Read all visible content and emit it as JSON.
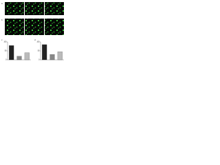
{
  "panels": [
    "a",
    "b",
    "c",
    "d"
  ],
  "chart_data": [
    {
      "type": "bar",
      "categories": [
        null,
        null,
        null
      ],
      "values": [
        80,
        20,
        40
      ],
      "colors": [
        "#222222",
        "#888888",
        "#bbbbbb"
      ],
      "ylim": [
        0,
        100
      ],
      "yticks": [
        0,
        50,
        100
      ]
    },
    {
      "type": "bar",
      "categories": [
        null,
        null,
        null
      ],
      "values": [
        85,
        30,
        45
      ],
      "colors": [
        "#222222",
        "#888888",
        "#bbbbbb"
      ],
      "ylim": [
        0,
        100
      ],
      "yticks": [
        0,
        50,
        100
      ]
    }
  ]
}
